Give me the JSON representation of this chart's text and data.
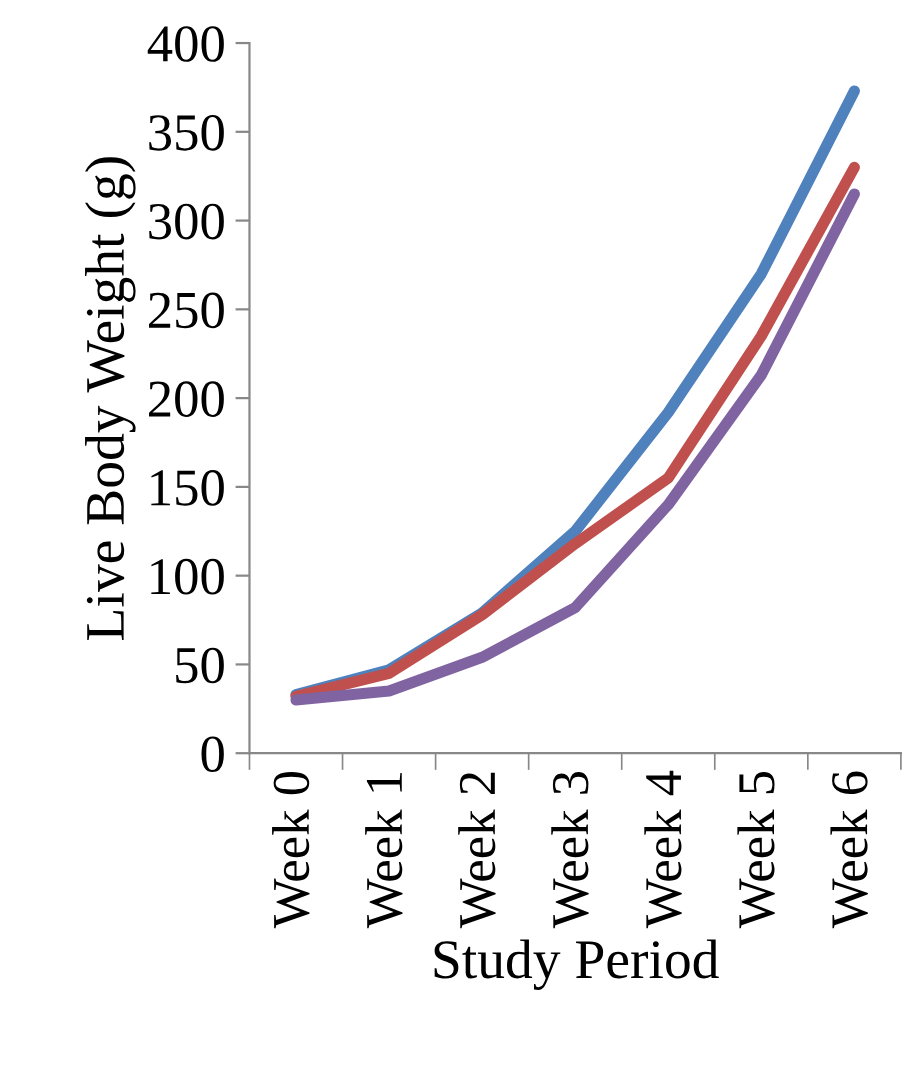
{
  "chart_data": {
    "type": "line",
    "xlabel": "Study Period",
    "ylabel": "Live Body Weight (g)",
    "categories": [
      "Week 0",
      "Week 1",
      "Week 2",
      "Week 3",
      "Week 4",
      "Week 5",
      "Week 6"
    ],
    "series": [
      {
        "color": "#4f81bd",
        "values": [
          33,
          47,
          79,
          125,
          192,
          270,
          373
        ]
      },
      {
        "color": "#c0504d",
        "values": [
          32,
          45,
          78,
          118,
          155,
          235,
          330
        ]
      },
      {
        "color": "#8064a2",
        "values": [
          30,
          35,
          54,
          82,
          140,
          213,
          315
        ]
      }
    ],
    "ylim": [
      0,
      400
    ],
    "yticks": [
      0,
      50,
      100,
      150,
      200,
      250,
      300,
      350,
      400
    ],
    "grid": false,
    "marker": "none",
    "line_style": "solid"
  }
}
